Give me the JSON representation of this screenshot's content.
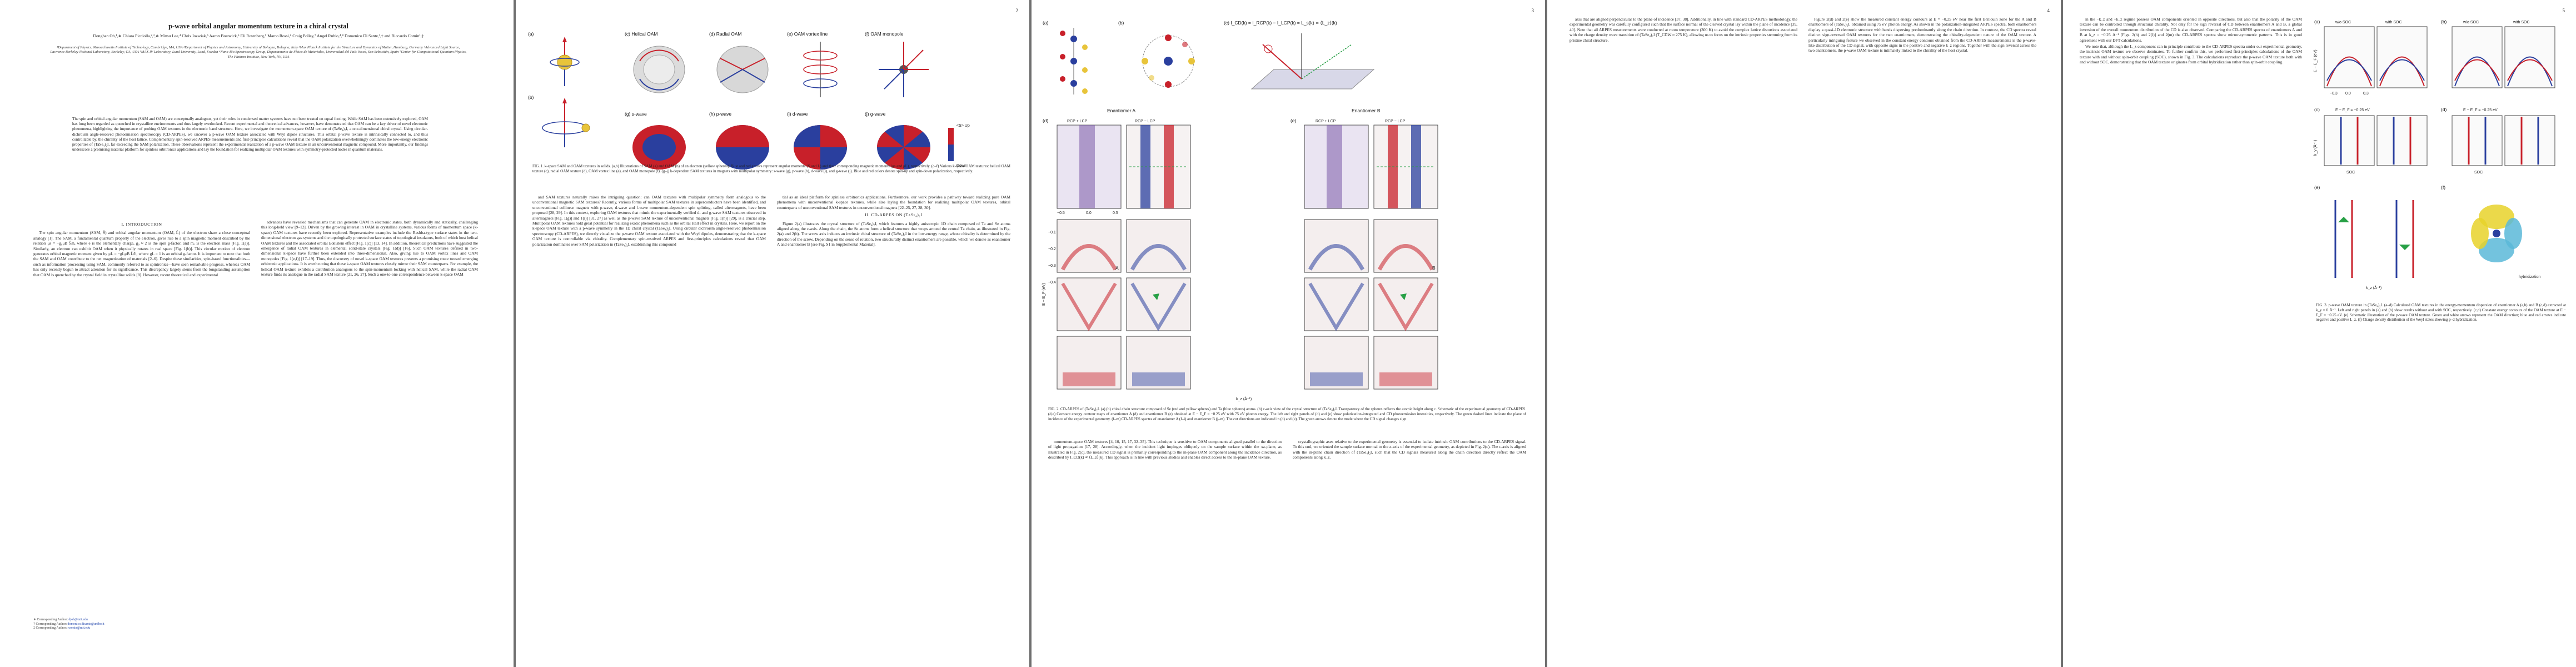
{
  "arxiv_id": "arXiv:2605.15544v1  [cond-mat.mtrl-sci]  15 May 2026",
  "page_numbers": [
    "2",
    "3",
    "4",
    "5"
  ],
  "title": "p-wave orbital angular momentum texture in a chiral crystal",
  "authors": "Donghan Oh,¹,∗ Chiara Picciolla,²,³,∗ Minsu Lee,⁴ Chris Jozwiak,⁵ Aaron Bostwick,⁵ Eli Rotenberg,⁵ Marco Rossi,⁶ Craig Polley,⁷ Angel Rubio,⁴,⁸ Domenico Di Sante,³,† and Riccardo Comin¹,‡",
  "affiliations": "¹Department of Physics, Massachusetts Institute of Technology, Cambridge, MA, USA ²Department of Physics and Astronomy, University of Bologna, Bologna, Italy ³Max Planck Institute for the Structure and Dynamics of Matter, Hamburg, Germany ⁴Advanced Light Source, Lawrence Berkeley National Laboratory, Berkeley, CA, USA ⁵MAX IV Laboratory, Lund University, Lund, Sweden ⁶Nano-Bio Spectroscopy Group, Departamento de Física de Materiales, Universidad del País Vasco, San Sebastián, Spain ⁷Center for Computational Quantum Physics, The Flatiron Institute, New York, NY, USA",
  "abstract": "The spin and orbital angular momentum (SAM and OAM) are conceptually analogous, yet their roles in condensed matter systems have not been treated on equal footing. While SAM has been extensively explored, OAM has long been regarded as quenched in crystalline environments and thus largely overlooked. Recent experimental and theoretical advances, however, have demonstrated that OAM can be a key driver of novel electronic phenomena, highlighting the importance of probing OAM textures in the electronic band structure. Here, we investigate the momentum-space OAM texture of (TaSe₄)₂I, a one-dimensional chiral crystal. Using circular-dichroism angle-resolved photoemission spectroscopy (CD-ARPES), we uncover a p-wave OAM texture associated with Weyl dipole structures. This orbital p-wave texture is intrinsically connected to, and thus controllable by, the chirality of the host lattice. Complementary spin-resolved ARPES measurements and first-principles calculations reveal that the OAM polarization overwhelmingly dominates the low-energy electronic properties of (TaSe₄)₂I, far exceeding the SAM polarization. These observations represent the experimental realization of a p-wave OAM texture in an unconventional magnetic compound. More importantly, our findings underscore a promising material platform for spinless orbitronics applications and lay the foundation for realizing multipolar OAM textures with symmetry-protected nodes in quantum materials.",
  "sections": {
    "intro": "I.  INTRODUCTION",
    "cd_arpes": "II.  CD-ARPES ON (TaSe₄)₂I"
  },
  "page1_text": {
    "col1": "The spin angular momentum (SAM, Ŝ) and orbital angular momentum (OAM, L̂) of the electron share a close conceptual analogy [1]. The SAM, a fundamental quantum property of the electron, gives rise to a spin magnetic moment described by the relation μs = −g₀μB Ŝ/ħ, where e is the elementary charge, g₀ ≈ 2 is the spin g-factor, and mₑ is the electron mass [Fig. 1(a)]. Similarly, an electron can exhibit OAM when it physically rotates in real space [Fig. 1(b)]. This circular motion of electron generates orbital magnetic moment given by μL = −gLμB L̂/ħ, where gL = 1 is an orbital g-factor. It is important to note that both the SAM and OAM contribute to the net magnetization of materials [2–6]. Despite these similarities, spin-based functionalities—such as information processing using SAM, commonly referred to as spintronics—have seen remarkable progress, whereas OAM has only recently begun to attract attention for its significance. This discrepancy largely stems from the longstanding assumption that OAM is quenched by the crystal field in crystalline solids [8]. However, recent theoretical and experimental",
    "col2": "advances have revealed mechanisms that can generate OAM in electronic states, both dynamically and statically, challenging this long-held view [9–12]. Driven by the growing interest in OAM in crystalline systems, various forms of momentum space (k-space) OAM textures have recently been explored. Representative examples include the Rashba-type surface states in the two-dimensional electron gas systems and the topologically protected surface states of topological insulators, both of which host helical OAM textures and the associated orbital Edelstein effect [Fig. 1(c)] [13, 14]. In addition, theoretical predictions have suggested the emergence of radial OAM textures in elemental solid-state crystals [Fig. 1(d)] [16]. Such OAM textures defined in two-dimensional k-space have further been extended into three-dimensional. Also, giving rise to OAM vortex lines and OAM monopoles [Fig. 1(e,f)] [17–19]. Thus, the discovery of novel k-space OAM textures presents a promising route toward emerging orbitronic applications. It is worth noting that these k-space OAM textures closely mirror their SAM counterparts. For example, the helical OAM texture exhibits a distribution analogous to the spin-momentum locking with helical SAM, while the radial OAM texture finds its analogue in the radial SAM texture [21, 26, 27]. Such a one-to-one correspondence between k-space OAM",
    "col3": "and SAM textures naturally raises the intriguing question: can OAM textures with multipolar symmetry form analogous to the unconventional magnetic SAM textures? Recently, various forms of multipolar SAM textures in superconductors have been identified, and unconventional collinear magnets with p-wave, d-wave and f-wave momentum-dependent spin splitting, called altermagnets, have been proposed [28, 29]. In this context, exploring OAM textures that mimic the experimentally verified d- and g-wave SAM textures observed in altermagnets [Fig. 1(g)] and 1(i)] [31, 27] as well as the p-wave SAM texture of unconventional magnets [Fig. 1(h)] [29], is a crucial step. Multipolar OAM textures hold great potential for realizing exotic phenomena such as the orbital Hall effect in crystals. Here, we report on the k-space OAM texture with a p-wave symmetry in the 1D chiral crystal (TaSe₄)₂I. Using circular dichroism angle-resolved photoemission spectroscopy (CD-ARPES), we directly visualize the p-wave OAM texture associated with the Weyl dipoles, demonstrating that the k-space OAM texture is controllable via chirality. Complementary spin-resolved ARPES and first-principles calculations reveal that OAM polarization dominates over SAM polarization in (TaSe₄)₂I, establishing this compound",
    "col4": "tial as an ideal platform for spinless orbitronics applications. Furthermore, our work provides a pathway toward realizing pure OAM phenomena with unconventional k-space textures, while also laying the foundation for realizing multipolar OAM textures, orbital counterparts of unconventional SAM textures in unconventional magnets [22–25, 27, 28, 30].",
    "col4b": "Figure 2(a) illustrates the crystal structure of (TaSe₄)₂I, which features a highly anisotropic 1D chain composed of Ta and Se atoms aligned along the c-axis. Along the chain, the Se atoms form a helical structure that wraps around the central Ta chain, as illustrated in Fig. 2(a) and 2(b). The screw axis induces an intrinsic chiral structure of (TaSe₄)₂I in the low-energy range, whose chirality is determined by the direction of the screw. Depending on the sense of rotation, two structurally distinct enantiomers are possible, which we denote as enantiomer A and enantiomer B [see Fig. S1 in Supplemental Material]."
  },
  "footnotes": {
    "f1_label": "∗ Corresponding Author:",
    "f1_email": "djoh@mit.edu",
    "f2_label": "† Corresponding Author:",
    "f2_email": "domenico.disante@unibo.it",
    "f3_label": "‡ Corresponding Author:",
    "f3_email": "rcomin@mit.edu"
  },
  "figure1": {
    "panel_titles": {
      "a": "(a)",
      "b": "(b)",
      "c": "(c)  Helical OAM",
      "d": "(d)  Radial OAM",
      "e": "(e)  OAM vortex line",
      "f": "(f)  OAM monopole",
      "g": "(g)  s-wave",
      "h": "(h)  p-wave",
      "i": "(i)  d-wave",
      "j": "(j)  g-wave"
    },
    "up_label": "Up",
    "down_label": "Down",
    "legend": "<S> Up",
    "caption": "FIG. 1.  k-space SAM and OAM textures in solids.  (a,b) Illustrations of SAM (a) and OAM (b) of an electron (yellow spheres). Blue and red arrows represent angular momenta (S and L) and their corresponding magnetic moments (μs and μL), respectively. (c–f) Various k-space OAM textures: helical OAM texture (c), radial OAM texture (d), OAM vortex line (e), and OAM monopole (f). (g–j) k-dependent SAM textures in magnets with multipolar symmetry: s-wave (g), p-wave (h), d-wave (i), and g-wave (j). Blue and red colors denote spin-up and spin-down polarization, respectively."
  },
  "figure2": {
    "panel_titles": {
      "a": "(a)",
      "b": "(b)",
      "c": "(c)  I_CD(k) = I_RCP(k) − I_LCP(k) = L_s(k) ∝ ⟨L_z⟩(k)",
      "d": "(d)",
      "e": "(e)"
    },
    "enantiomer_a": "Enantiomer A",
    "enantiomer_b": "Enantiomer B",
    "rcp_lcp": "RCP + LCP",
    "rcp_minus_lcp": "RCP − LCP",
    "ylabel": "E − E_F (eV)",
    "xlabel": "k_z (Å⁻¹)",
    "xticks": [
      "−0.5",
      "0.0",
      "0.5"
    ],
    "yticks": [
      "−0.1",
      "−0.2",
      "−0.3",
      "−0.4"
    ],
    "corner_labels": [
      "A",
      "B"
    ],
    "caption": "FIG. 2.  CD-ARPES of (TaSe₄)₂I. (a) (b) chiral chain structure composed of Se (red and yellow spheres) and Ta (blue spheres) atoms. (b) c-axis view of the crystal structure of (TaSe₄)₂I. Transparency of the spheres reflects the atomic height along c. Schematic of the experimental geometry of CD-ARPES. (d,e) Constant energy contour maps of enantiomer A (d) and enantiomer B (e) obtained at E − E_F = −0.25 eV with 75 eV photon energy. The left and right panels of (d) and (e) show polarization-integrated and CD photoemission intensities, respectively. The green dashed lines indicate the plane of incidence of the experimental geometry. (f–m) CD-ARPES spectra of enantiomer A (f–i) and enantiomer B (j–m). The cut directions are indicated in (d) and (e). The green arrows denote the mode where the CD signal changes sign."
  },
  "page3_text": {
    "col1": "momentum-space OAM textures [4, 10, 15, 17, 32–35]. This technique is sensitive to OAM components aligned parallel to the direction of light propagation [17, 28]. Accordingly, when the incident light impinges obliquely on the sample surface within the xz-plane, as illustrated in Fig. 2(c), the measured CD signal is primarily corresponding to the in-plane OAM component along the incidence direction, as described by I_CD(k) ∝ ⟨L_z⟩(k). This approach is in line with previous studies and enables direct access to the in-plane OAM texture.",
    "col2": "crystallographic axes relative to the experimental geometry is essential to isolate intrinsic OAM contributions to the CD-ARPES signal. To this end, we oriented the sample surface normal to the z-axis of the experimental geometry, as depicted in Fig. 2(c). The c-axis is aligned with the in-plane chain direction of (TaSe₄)₂I, such that the CD signals measured along the chain direction directly reflect the OAM components along k_z."
  },
  "page4_text": {
    "col1": "axis that are aligned perpendicular to the plane of incidence [37, 38]. Additionally, in line with standard CD-ARPES methodology, the experimental geometry was carefully configured such that the surface normal of the cleaved crystal lay within the plane of incidence [39, 40]. Note that all ARPES measurements were conducted at room temperature (300 K) to avoid the complex lattice distortions associated with the charge density wave transition of (TaSe₄)₂I (T_CDW ≈ 275 K), allowing us to focus on the intrinsic properties stemming from its pristine chiral structure.",
    "col2": "Figure 2(d) and 2(e) show the measured constant energy contours at E = −0.25 eV near the first Brillouin zone for the A and B enantiomers of (TaSe₄)₂I, obtained using 75 eV photon energy. As shown in the polarization-integrated ARPES spectra, both enantiomers display a quasi-1D electronic structure with bands dispersing predominantly along the chain direction. In contrast, the CD spectra reveal distinct sign-reversed OAM textures for the two enantiomers, demonstrating the chirality-dependent nature of the OAM texture. A particularly intriguing feature we observed in the constant energy contours obtained from the CD-ARPES measurements is the p-wave-like distribution of the CD signal, with opposite signs in the positive and negative k_z regions. Together with the sign reversal across the two enantiomers, the p-wave OAM texture is intimately linked to the chirality of the host crystal."
  },
  "page5_text": {
    "col1": "in the −k_z and +k_z regime possess OAM components oriented in opposite directions, but also that the polarity of the OAM texture can be controlled through structural chirality. Not only for the sign reversal of CD between enantiomers A and B, a global inversion of the overall momentum distribution of the CD is also observed. Comparing the CD-ARPES spectra of enantiomers A and B at k_z = −0.25 Å⁻¹ [Figs. 2(h) and 2(l)] and 2(m) the CD-ARPES spectra show mirror-symmetric patterns. This is in good agreement with our DFT calculations.",
    "col2": "We note that, although the L_z component can in principle contribute to the CD-ARPES spectra under our experimental geometry, the intrinsic OAM texture we observe dominates. To further confirm this, we performed first-principles calculations of the OAM texture with and without spin-orbit coupling (SOC), shown in Fig. 3. The calculations reproduce the p-wave OAM texture both with and without SOC, demonstrating that the OAM texture originates from orbital hybridization rather than spin-orbit coupling."
  },
  "figure3": {
    "panel_titles": {
      "a": "(a)",
      "b": "(b)",
      "c": "(c)",
      "d": "(d)",
      "e": "(e)",
      "f": "(f)"
    },
    "wo_soc": "w/o SOC",
    "with_soc": "with SOC",
    "soc_labels": [
      "SOC",
      "SOC"
    ],
    "energy_label": "E − E_F = −0.25 eV",
    "ylabel": "k_y (Å⁻¹)",
    "xlabel": "k_z (Å⁻¹)",
    "elabel": "E − E_F (eV)",
    "xticks": [
      "−0.3",
      "0.0",
      "0.3"
    ],
    "hybridization": "hybridization",
    "caption": "FIG. 3.  p-wave OAM texture in (TaSe₄)₂I. (a–d) Calculated OAM textures in the energy-momentum dispersion of enantiomer A (a,b) and B (c,d) extracted at k_y = 0 Å⁻¹. Left and right panels in (a) and (b) show results without and with SOC, respectively. (c,d) Constant energy contours of the OAM texture at E − E_F = −0.25 eV. (e) Schematic illustration of the p-wave OAM texture. Green and white arrows represent the OAM direction; blue and red arrows indicate negative and positive L_z. (f) Charge density distribution of the Weyl states showing p–d hybridization."
  },
  "colors": {
    "cd_positive": "#c8202a",
    "cd_negative": "#2a3f9e",
    "accent_green": "#28a046",
    "link_blue": "#1a3fa8"
  }
}
